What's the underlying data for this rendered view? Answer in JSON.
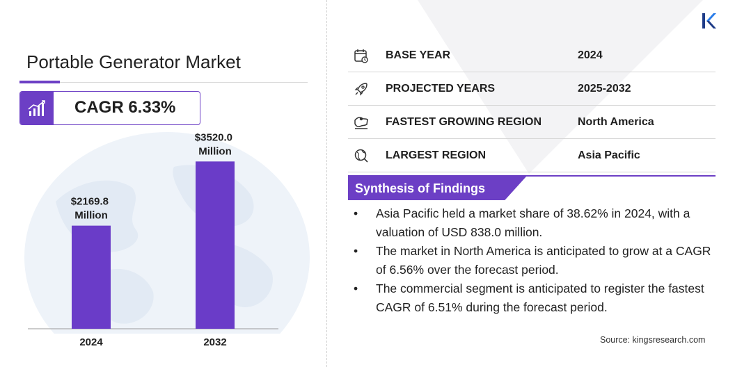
{
  "title": "Portable Generator Market",
  "cagr": "CAGR 6.33%",
  "chart_data": {
    "type": "bar",
    "categories": [
      "2024",
      "2032"
    ],
    "values": [
      2169.8,
      3520.0
    ],
    "value_labels": [
      [
        "$2169.8",
        "Million"
      ],
      [
        "$3520.0",
        "Million"
      ]
    ],
    "title": "",
    "xlabel": "",
    "ylabel": "",
    "ylim": [
      0,
      3700
    ],
    "grid": false,
    "bar_color": "#6a3cc8"
  },
  "info_rows": [
    {
      "icon": "calendar-icon",
      "label": "BASE YEAR",
      "value": "2024"
    },
    {
      "icon": "rocket-icon",
      "label": "PROJECTED YEARS",
      "value": "2025-2032"
    },
    {
      "icon": "region-map-icon",
      "label": "FASTEST GROWING REGION",
      "value": "North America"
    },
    {
      "icon": "globe-icon",
      "label": "LARGEST REGION",
      "value": "Asia Pacific"
    }
  ],
  "synthesis": {
    "title": "Synthesis of Findings",
    "bullet": "•",
    "items": [
      "Asia Pacific held a market share of 38.62% in 2024, with a valuation of USD 838.0 million.",
      "The market in North America is anticipated to grow at a CAGR of 6.56% over the forecast period.",
      "The commercial segment is anticipated to register the fastest CAGR of 6.51% during the forecast period."
    ]
  },
  "source": "Source:  kingsresearch.com",
  "logo_icon": "kings-research-logo-icon",
  "colors": {
    "accent": "#6c3fc5",
    "bar": "#6a3cc8",
    "globe": "#e9f0f8"
  }
}
